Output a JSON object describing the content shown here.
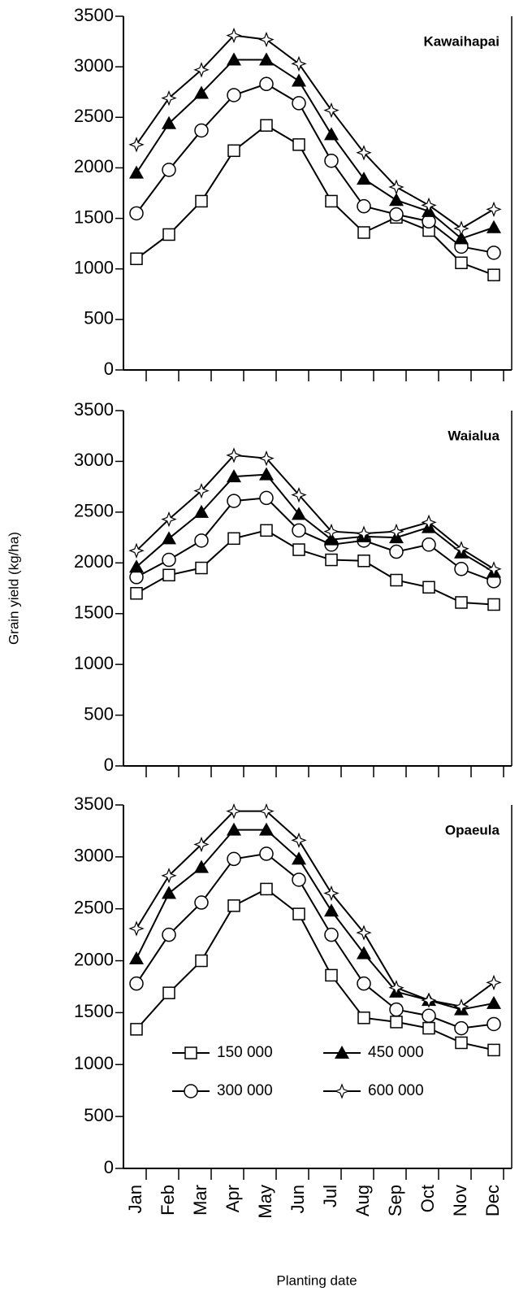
{
  "chart_data": [
    {
      "type": "line",
      "title": "Kawaihapai",
      "categories": [
        null,
        null,
        null,
        null,
        null,
        null,
        null,
        null,
        null,
        null,
        null,
        null
      ],
      "ylim": [
        0,
        3500
      ],
      "yticks": [
        0,
        500,
        1000,
        1500,
        2000,
        2500,
        3000,
        3500
      ],
      "series": [
        {
          "marker": "square",
          "color": "#000000",
          "values": [
            1100,
            1340,
            1670,
            2170,
            2420,
            2230,
            1670,
            1360,
            1510,
            1380,
            1060,
            940
          ]
        },
        {
          "marker": "circle",
          "color": "#000000",
          "values": [
            1550,
            1980,
            2370,
            2720,
            2830,
            2640,
            2070,
            1620,
            1540,
            1470,
            1220,
            1160
          ]
        },
        {
          "marker": "triangle",
          "color": "#000000",
          "values": [
            1950,
            2440,
            2740,
            3070,
            3070,
            2860,
            2330,
            1890,
            1680,
            1570,
            1300,
            1410
          ]
        },
        {
          "marker": "star",
          "color": "#000000",
          "values": [
            2230,
            2690,
            2970,
            3310,
            3270,
            3030,
            2570,
            2150,
            1810,
            1630,
            1400,
            1590
          ]
        }
      ]
    },
    {
      "type": "line",
      "title": "Waialua",
      "ylabel": "Grain yield (kg/ha)",
      "categories": [
        null,
        null,
        null,
        null,
        null,
        null,
        null,
        null,
        null,
        null,
        null,
        null
      ],
      "ylim": [
        0,
        3500
      ],
      "yticks": [
        0,
        500,
        1000,
        1500,
        2000,
        2500,
        3000,
        3500
      ],
      "series": [
        {
          "marker": "square",
          "color": "#000000",
          "values": [
            1700,
            1880,
            1950,
            2240,
            2320,
            2130,
            2030,
            2020,
            1830,
            1760,
            1610,
            1590
          ]
        },
        {
          "marker": "circle",
          "color": "#000000",
          "values": [
            1860,
            2030,
            2220,
            2610,
            2640,
            2320,
            2180,
            2220,
            2110,
            2180,
            1940,
            1820
          ]
        },
        {
          "marker": "triangle",
          "color": "#000000",
          "values": [
            1960,
            2240,
            2500,
            2850,
            2870,
            2480,
            2230,
            2260,
            2250,
            2350,
            2100,
            1910
          ]
        },
        {
          "marker": "star",
          "color": "#000000",
          "values": [
            2120,
            2430,
            2710,
            3060,
            3030,
            2670,
            2310,
            2290,
            2310,
            2400,
            2140,
            1940
          ]
        }
      ]
    },
    {
      "type": "line",
      "title": "Opaeula",
      "xlabel": "Planting date",
      "categories": [
        "Jan",
        "Feb",
        "Mar",
        "Apr",
        "May",
        "Jun",
        "Jul",
        "Aug",
        "Sep",
        "Oct",
        "Nov",
        "Dec"
      ],
      "ylim": [
        0,
        3500
      ],
      "yticks": [
        0,
        500,
        1000,
        1500,
        2000,
        2500,
        3000,
        3500
      ],
      "series": [
        {
          "name": "150 000",
          "marker": "square",
          "color": "#000000",
          "values": [
            1340,
            1690,
            2000,
            2530,
            2690,
            2450,
            1860,
            1450,
            1410,
            1350,
            1210,
            1140
          ]
        },
        {
          "name": "300 000",
          "marker": "circle",
          "color": "#000000",
          "values": [
            1780,
            2250,
            2560,
            2980,
            3030,
            2780,
            2250,
            1780,
            1530,
            1470,
            1350,
            1390
          ]
        },
        {
          "name": "450 000",
          "marker": "triangle",
          "color": "#000000",
          "values": [
            2020,
            2650,
            2900,
            3260,
            3260,
            2980,
            2480,
            2070,
            1700,
            1620,
            1530,
            1590
          ]
        },
        {
          "name": "600 000",
          "marker": "star",
          "color": "#000000",
          "values": [
            2310,
            2820,
            3120,
            3440,
            3440,
            3160,
            2650,
            2270,
            1740,
            1620,
            1560,
            1790
          ]
        }
      ]
    }
  ]
}
